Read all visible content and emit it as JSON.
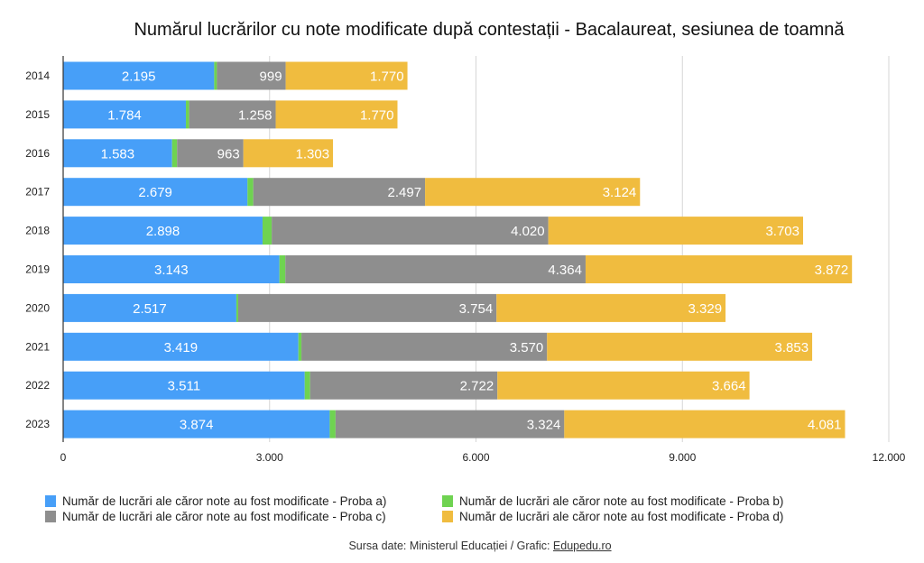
{
  "chart_data": {
    "type": "bar",
    "orientation": "horizontal",
    "stacked": true,
    "title": "Numărul lucrărilor cu note modificate după contestații - Bacalaureat, sesiunea de toamnă",
    "categories": [
      "2014",
      "2015",
      "2016",
      "2017",
      "2018",
      "2019",
      "2020",
      "2021",
      "2022",
      "2023"
    ],
    "series": [
      {
        "name": "Număr de lucrări ale căror note au fost modificate - Proba a)",
        "color": "#479ff8",
        "values": [
          2195,
          1784,
          1583,
          2679,
          2898,
          3143,
          2517,
          3419,
          3511,
          3874
        ],
        "labels": [
          "2.195",
          "1.784",
          "1.583",
          "2.679",
          "2.898",
          "3.143",
          "2.517",
          "3.419",
          "3.511",
          "3.874"
        ]
      },
      {
        "name": "Număr de lucrări ale căror note au fost modificate -  Proba b)",
        "color": "#6fd351",
        "values": [
          40,
          47,
          73,
          84,
          133,
          86,
          27,
          44,
          78,
          85
        ],
        "labels": [
          "40",
          "47",
          "73",
          "84",
          "133",
          "86",
          "27",
          "44",
          "78",
          "85"
        ]
      },
      {
        "name": "Număr de lucrări ale căror note au fost modificate - Proba c)",
        "color": "#8e8e8e",
        "values": [
          999,
          1258,
          963,
          2497,
          4020,
          4364,
          3754,
          3570,
          2722,
          3324
        ],
        "labels": [
          "999",
          "1.258",
          "963",
          "2.497",
          "4.020",
          "4.364",
          "3.754",
          "3.570",
          "2.722",
          "3.324"
        ]
      },
      {
        "name": "Număr de lucrări ale căror note au fost modificate -  Proba d)",
        "color": "#f0bc3f",
        "values": [
          1770,
          1770,
          1303,
          3124,
          3703,
          3872,
          3329,
          3853,
          3664,
          4081
        ],
        "labels": [
          "1.770",
          "1.770",
          "1.303",
          "3.124",
          "3.703",
          "3.872",
          "3.329",
          "3.853",
          "3.664",
          "4.081"
        ]
      }
    ],
    "xlim": [
      0,
      12000
    ],
    "xticks": [
      0,
      3000,
      6000,
      9000,
      12000
    ],
    "xtick_labels": [
      "0",
      "3.000",
      "6.000",
      "9.000",
      "12.000"
    ],
    "grid": true,
    "legend_position": "bottom",
    "source_prefix": "Sursa date: Ministerul Educației / Grafic: ",
    "source_link": "Edupedu.ro"
  }
}
